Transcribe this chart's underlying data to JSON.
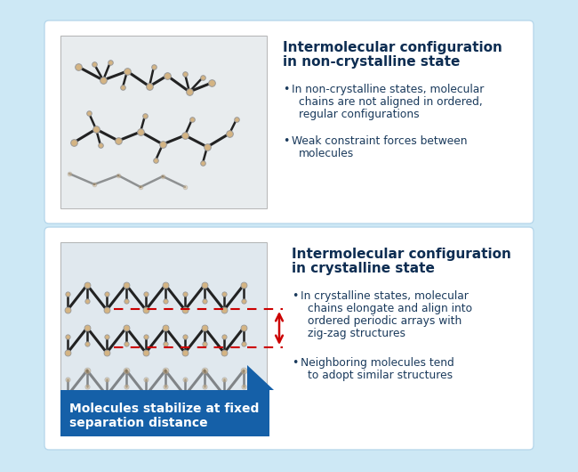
{
  "bg_color": "#cde8f5",
  "panel_color": "#ffffff",
  "panel_border_color": "#b8d8ec",
  "panel1": {
    "title_line1": "Intermolecular configuration",
    "title_line2": "in non-crystalline state",
    "bullet1_line1": "In non-crystalline states, molecular",
    "bullet1_line2": "chains are not aligned in ordered,",
    "bullet1_line3": "regular configurations",
    "bullet2_line1": "Weak constraint forces between",
    "bullet2_line2": "molecules"
  },
  "panel2": {
    "title_line1": "Intermolecular configuration",
    "title_line2": "in crystalline state",
    "bullet1_line1": "In crystalline states, molecular",
    "bullet1_line2": "chains elongate and align into",
    "bullet1_line3": "ordered periodic arrays with",
    "bullet1_line4": "zig-zag structures",
    "bullet2_line1": "Neighboring molecules tend",
    "bullet2_line2": "to adopt similar structures"
  },
  "callout_text_line1": "Molecules stabilize at fixed",
  "callout_text_line2": "separation distance",
  "title_color": "#0d2d52",
  "body_color": "#1a3a5c",
  "callout_bg": "#1560a8",
  "callout_text_color": "#ffffff",
  "arrow_color": "#cc0000",
  "dashed_color": "#cc0000",
  "img_bg_light": "#dde8ee",
  "img_bg_dark": "#b0c4ce",
  "bond_color": "#222222",
  "atom_color": "#d4b483",
  "atom_edge": "#999999"
}
